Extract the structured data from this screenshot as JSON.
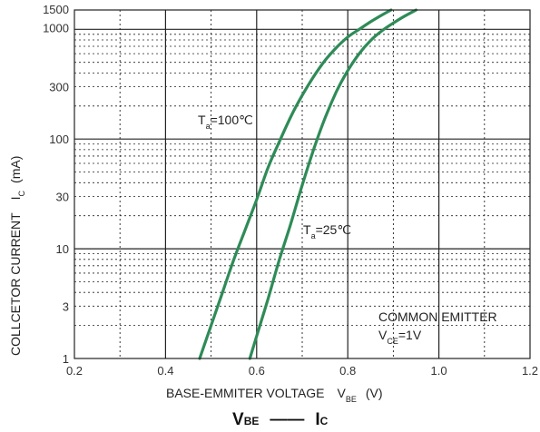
{
  "chart_data": {
    "type": "line",
    "title": "",
    "x_scale": "linear",
    "y_scale": "log",
    "xlim": [
      0.2,
      1.2
    ],
    "ylim": [
      1,
      1500
    ],
    "xticks": [
      "0.2",
      "0.4",
      "0.6",
      "0.8",
      "1.0",
      "1.2"
    ],
    "yticks": [
      "1",
      "3",
      "10",
      "30",
      "100",
      "300",
      "1000",
      "1500"
    ],
    "xlabel": {
      "main": "BASE-EMMITER VOLTAGE",
      "symbol": "V",
      "sub": "BE",
      "unit": "(V)"
    },
    "ylabel": {
      "main": "COLLCETOR CURRENT",
      "symbol": "I",
      "sub": "C",
      "unit": "(mA)"
    },
    "grid": true,
    "line_color": "#2e8b57",
    "series": [
      {
        "name_main": "T",
        "name_sub": "a",
        "name_tail": "=100℃",
        "x": [
          0.475,
          0.5,
          0.525,
          0.55,
          0.575,
          0.6,
          0.625,
          0.65,
          0.675,
          0.7,
          0.725,
          0.75,
          0.775,
          0.8,
          0.825,
          0.85,
          0.875,
          0.895
        ],
        "y": [
          1,
          2,
          4,
          8,
          15,
          28,
          55,
          95,
          160,
          250,
          370,
          520,
          680,
          850,
          1000,
          1170,
          1350,
          1500
        ]
      },
      {
        "name_main": "T",
        "name_sub": "a",
        "name_tail": "=25℃",
        "x": [
          0.585,
          0.6,
          0.625,
          0.65,
          0.675,
          0.7,
          0.725,
          0.75,
          0.775,
          0.8,
          0.825,
          0.85,
          0.875,
          0.9,
          0.925,
          0.95
        ],
        "y": [
          1,
          1.6,
          3.5,
          8,
          17,
          38,
          80,
          155,
          270,
          420,
          600,
          790,
          970,
          1140,
          1320,
          1500
        ]
      }
    ],
    "annotations": {
      "mode": "COMMON EMITTER",
      "condition_main": "V",
      "condition_sub": "CE",
      "condition_tail": "=1V"
    },
    "caption": {
      "left": "V",
      "left_sub": "BE",
      "dash": "——",
      "right": "I",
      "right_sub": "C"
    }
  }
}
